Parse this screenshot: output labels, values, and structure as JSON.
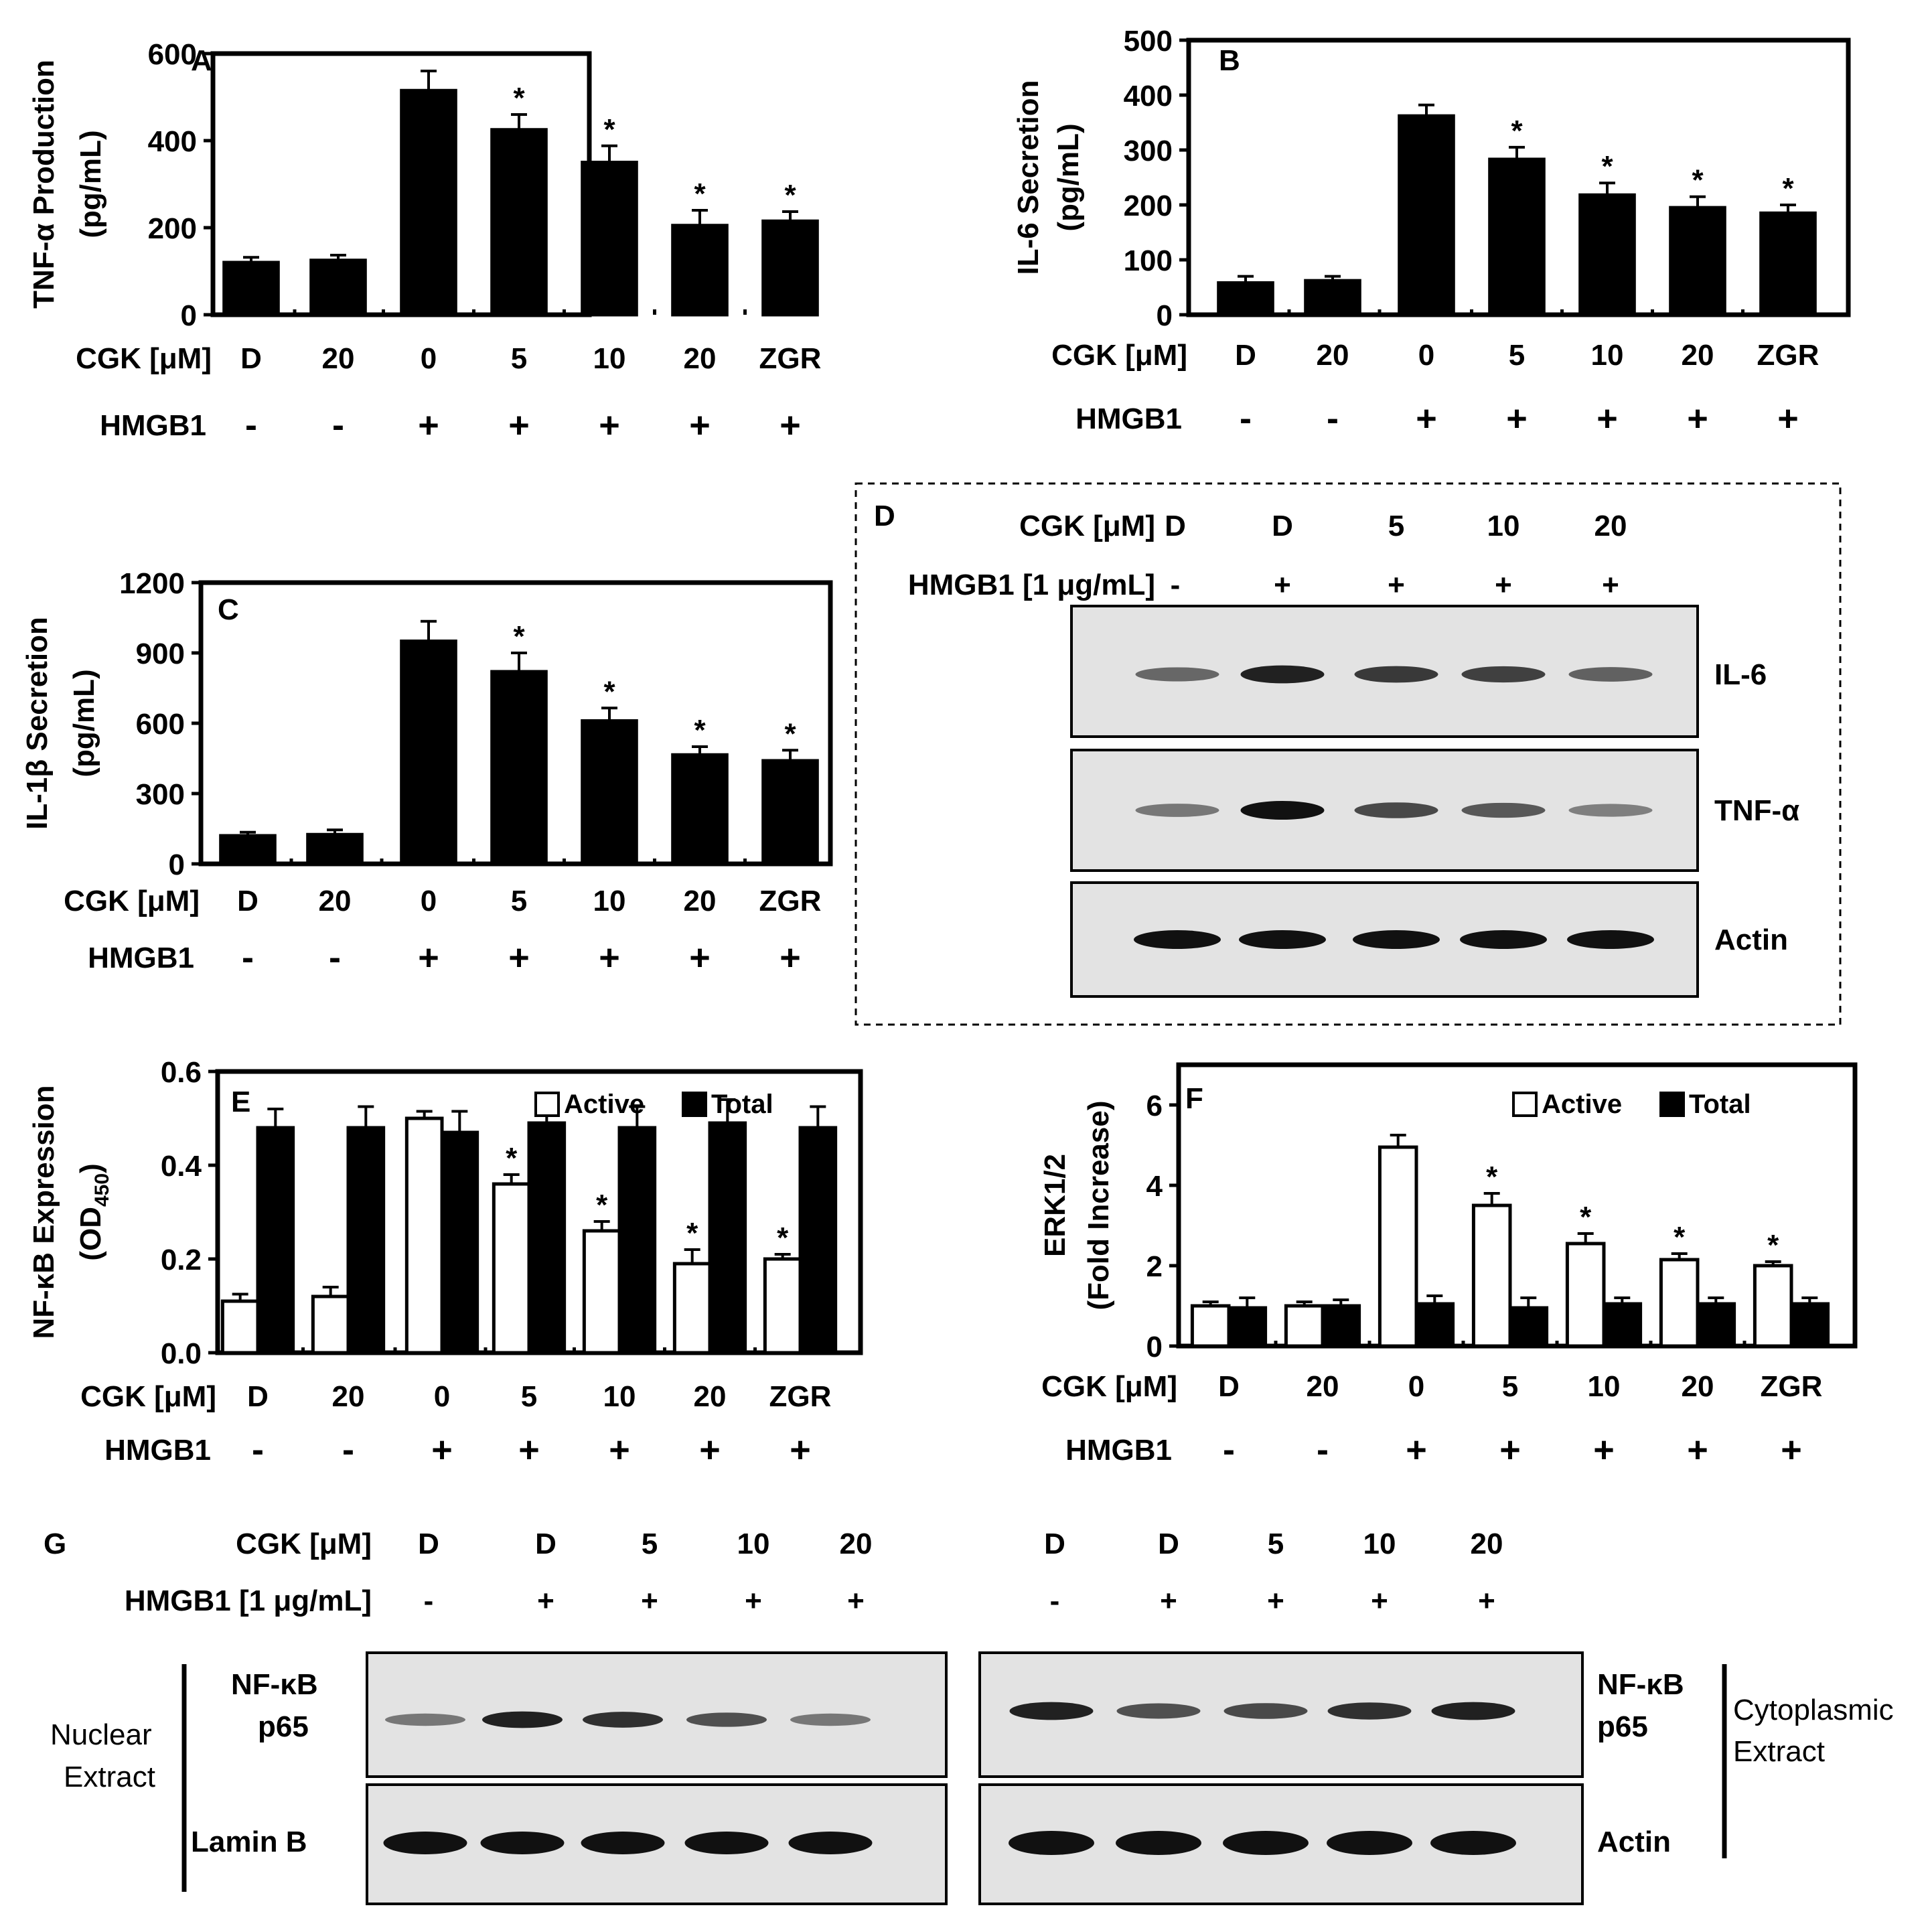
{
  "chart_data": [
    {
      "panel": "A",
      "type": "bar",
      "ylabel_line1": "TNF-α Production",
      "ylabel_line2": "(pg/mL)",
      "ylim": [
        0,
        600
      ],
      "yticks": [
        0,
        200,
        400,
        600
      ],
      "categories": [
        "D",
        "20",
        "0",
        "5",
        "10",
        "20",
        "ZGR"
      ],
      "values": [
        120,
        125,
        515,
        425,
        350,
        205,
        215
      ],
      "errors": [
        12,
        12,
        45,
        35,
        38,
        35,
        22
      ],
      "significant": [
        false,
        false,
        false,
        true,
        true,
        true,
        true
      ],
      "row1_label": "CGK [μM]",
      "row2_label": "HMGB1",
      "hmgb1": [
        "-",
        "-",
        "+",
        "+",
        "+",
        "+",
        "+"
      ]
    },
    {
      "panel": "B",
      "type": "bar",
      "ylabel_line1": "IL-6 Secretion",
      "ylabel_line2": "(pg/mL)",
      "ylim": [
        0,
        500
      ],
      "yticks": [
        0,
        100,
        200,
        300,
        400,
        500
      ],
      "categories": [
        "D",
        "20",
        "0",
        "5",
        "10",
        "20",
        "ZGR"
      ],
      "values": [
        58,
        62,
        362,
        283,
        218,
        195,
        185
      ],
      "errors": [
        12,
        8,
        20,
        22,
        22,
        20,
        15
      ],
      "significant": [
        false,
        false,
        false,
        true,
        true,
        true,
        true
      ],
      "row1_label": "CGK [μM]",
      "row2_label": "HMGB1",
      "hmgb1": [
        "-",
        "-",
        "+",
        "+",
        "+",
        "+",
        "+"
      ]
    },
    {
      "panel": "C",
      "type": "bar",
      "ylabel_line1": "IL-1β Secretion",
      "ylabel_line2": "(pg/mL)",
      "ylim": [
        0,
        1200
      ],
      "yticks": [
        0,
        300,
        600,
        900,
        1200
      ],
      "categories": [
        "D",
        "20",
        "0",
        "5",
        "10",
        "20",
        "ZGR"
      ],
      "values": [
        120,
        125,
        950,
        820,
        610,
        465,
        440
      ],
      "errors": [
        15,
        20,
        85,
        80,
        55,
        35,
        45
      ],
      "significant": [
        false,
        false,
        false,
        true,
        true,
        true,
        true
      ],
      "row1_label": "CGK [μM]",
      "row2_label": "HMGB1",
      "hmgb1": [
        "-",
        "-",
        "+",
        "+",
        "+",
        "+",
        "+"
      ]
    },
    {
      "panel": "E",
      "type": "bar",
      "ylabel_line1": "NF-κB Expression",
      "ylabel_line2": "(OD",
      "ylabel_sub": "450",
      "ylabel_close": ")",
      "ylim": [
        0,
        0.6
      ],
      "yticks": [
        "0.0",
        "0.2",
        "0.4",
        "0.6"
      ],
      "categories": [
        "D",
        "20",
        "0",
        "5",
        "10",
        "20",
        "ZGR"
      ],
      "series": [
        {
          "name": "Active",
          "values": [
            0.11,
            0.12,
            0.5,
            0.36,
            0.26,
            0.19,
            0.2
          ],
          "errors": [
            0.015,
            0.02,
            0.015,
            0.02,
            0.02,
            0.03,
            0.01
          ],
          "significant": [
            false,
            false,
            false,
            true,
            true,
            true,
            true
          ]
        },
        {
          "name": "Total",
          "values": [
            0.48,
            0.48,
            0.47,
            0.49,
            0.48,
            0.49,
            0.48
          ],
          "errors": [
            0.04,
            0.045,
            0.045,
            0.04,
            0.045,
            0.05,
            0.045
          ],
          "significant": [
            false,
            false,
            false,
            false,
            false,
            false,
            false
          ]
        }
      ],
      "row1_label": "CGK [μM]",
      "row2_label": "HMGB1",
      "hmgb1": [
        "-",
        "-",
        "+",
        "+",
        "+",
        "+",
        "+"
      ]
    },
    {
      "panel": "F",
      "type": "bar",
      "ylabel_line1": "ERK1/2",
      "ylabel_line2": "(Fold Increase)",
      "ylim": [
        0,
        7
      ],
      "yticks": [
        0,
        2,
        4,
        6
      ],
      "categories": [
        "D",
        "20",
        "0",
        "5",
        "10",
        "20",
        "ZGR"
      ],
      "series": [
        {
          "name": "Active",
          "values": [
            1.0,
            1.0,
            4.95,
            3.5,
            2.55,
            2.15,
            2.0
          ],
          "errors": [
            0.1,
            0.1,
            0.3,
            0.3,
            0.25,
            0.15,
            0.1
          ],
          "significant": [
            false,
            false,
            false,
            true,
            true,
            true,
            true
          ]
        },
        {
          "name": "Total",
          "values": [
            0.95,
            1.0,
            1.05,
            0.95,
            1.05,
            1.05,
            1.05
          ],
          "errors": [
            0.25,
            0.15,
            0.2,
            0.25,
            0.15,
            0.15,
            0.15
          ],
          "significant": [
            false,
            false,
            false,
            false,
            false,
            false,
            false
          ]
        }
      ],
      "row1_label": "CGK [μM]",
      "row2_label": "HMGB1",
      "hmgb1": [
        "-",
        "-",
        "+",
        "+",
        "+",
        "+",
        "+"
      ]
    }
  ],
  "blot_d": {
    "panel": "D",
    "cgk_label": "CGK [μM]",
    "hmgb1_label": "HMGB1 [1 μg/mL]",
    "cgk": [
      "D",
      "D",
      "5",
      "10",
      "20"
    ],
    "hmgb1": [
      "-",
      "+",
      "+",
      "+",
      "+"
    ],
    "rows": [
      {
        "name": "IL-6",
        "intensity": [
          0.45,
          0.9,
          0.75,
          0.7,
          0.5
        ]
      },
      {
        "name": "TNF-α",
        "intensity": [
          0.35,
          1.0,
          0.65,
          0.55,
          0.3
        ]
      },
      {
        "name": "Actin",
        "intensity": [
          1.0,
          1.0,
          1.0,
          1.0,
          1.0
        ]
      }
    ]
  },
  "blot_g": {
    "panel": "G",
    "cgk_label": "CGK [μM]",
    "hmgb1_label": "HMGB1 [1 μg/mL]",
    "cgk": [
      "D",
      "D",
      "5",
      "10",
      "20"
    ],
    "hmgb1": [
      "-",
      "+",
      "+",
      "+",
      "+"
    ],
    "nuclear_label_1": "Nuclear",
    "nuclear_label_2": "Extract",
    "cyto_label_1": "Cytoplasmic",
    "cyto_label_2": "Extract",
    "nfkb_label_1": "NF-κB",
    "nfkb_label_2": "p65",
    "lamin_label": "Lamin B",
    "actin_label": "Actin",
    "nuclear_p65": [
      0.35,
      0.9,
      0.8,
      0.6,
      0.35
    ],
    "nuclear_lamin": [
      1.0,
      1.0,
      1.0,
      1.0,
      1.0
    ],
    "cyto_p65": [
      0.9,
      0.6,
      0.65,
      0.8,
      0.9
    ],
    "cyto_actin": [
      1.0,
      1.0,
      1.0,
      1.0,
      1.0
    ]
  }
}
